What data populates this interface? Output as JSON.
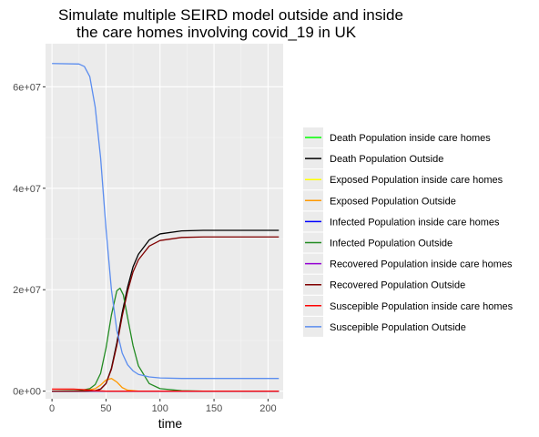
{
  "chart_data": {
    "type": "line",
    "title_lines": [
      "Simulate multiple SEIRD model outside and inside",
      "the care homes involving covid_19 in UK"
    ],
    "xlabel": "time",
    "ylabel": "",
    "xlim": [
      -6,
      214
    ],
    "ylim": [
      -1500000,
      68500000
    ],
    "x_ticks": [
      0,
      50,
      100,
      150,
      200
    ],
    "y_ticks": [
      0,
      20000000,
      40000000,
      60000000
    ],
    "y_tick_labels": [
      "0e+00",
      "2e+07",
      "4e+07",
      "6e+07"
    ],
    "grid": true,
    "legend_position": "right",
    "series": [
      {
        "name": "Death Population inside care homes",
        "color": "#00ff00",
        "x": [
          0,
          210
        ],
        "values": [
          0,
          0
        ]
      },
      {
        "name": "Death Population Outside",
        "color": "#000000",
        "x": [
          0,
          30,
          40,
          45,
          50,
          55,
          60,
          65,
          70,
          75,
          80,
          90,
          100,
          120,
          140,
          160,
          210
        ],
        "values": [
          0,
          0,
          100000,
          400000,
          1500000,
          4500000,
          9500000,
          15500000,
          20500000,
          24500000,
          27000000,
          29800000,
          31000000,
          31600000,
          31700000,
          31700000,
          31700000
        ]
      },
      {
        "name": "Exposed Population inside care homes",
        "color": "#ffff00",
        "x": [
          0,
          210
        ],
        "values": [
          0,
          0
        ]
      },
      {
        "name": "Exposed Population Outside",
        "color": "#ff9900",
        "x": [
          0,
          30,
          40,
          45,
          50,
          55,
          60,
          65,
          70,
          80,
          210
        ],
        "values": [
          0,
          100000,
          500000,
          1200000,
          2200000,
          2500000,
          1800000,
          700000,
          200000,
          0,
          0
        ]
      },
      {
        "name": "Infected Population inside care homes",
        "color": "#0000ff",
        "x": [
          0,
          210
        ],
        "values": [
          0,
          0
        ]
      },
      {
        "name": "Infected Population Outside",
        "color": "#228b22",
        "x": [
          0,
          25,
          35,
          40,
          45,
          50,
          55,
          60,
          63,
          66,
          70,
          75,
          80,
          90,
          100,
          120,
          140,
          210
        ],
        "values": [
          0,
          100000,
          500000,
          1300000,
          3500000,
          8500000,
          15000000,
          19800000,
          20300000,
          19000000,
          14500000,
          9000000,
          5000000,
          1500000,
          500000,
          80000,
          0,
          0
        ]
      },
      {
        "name": "Recovered Population inside care homes",
        "color": "#9400d3",
        "x": [
          0,
          210
        ],
        "values": [
          0,
          0
        ]
      },
      {
        "name": "Recovered Population Outside",
        "color": "#800000",
        "x": [
          0,
          30,
          40,
          45,
          50,
          55,
          60,
          65,
          70,
          75,
          80,
          90,
          100,
          120,
          140,
          160,
          210
        ],
        "values": [
          0,
          0,
          100000,
          400000,
          1500000,
          4300000,
          9000000,
          14800000,
          19700000,
          23500000,
          25900000,
          28600000,
          29700000,
          30300000,
          30400000,
          30400000,
          30400000
        ]
      },
      {
        "name": "Suscepible Population inside care homes",
        "color": "#ff0000",
        "x": [
          0,
          20,
          30,
          40,
          50,
          60,
          80,
          210
        ],
        "values": [
          400000,
          400000,
          300000,
          100000,
          0,
          0,
          0,
          0
        ]
      },
      {
        "name": "Suscepible Population Outside",
        "color": "#5b8def",
        "x": [
          0,
          25,
          30,
          35,
          40,
          45,
          50,
          55,
          60,
          65,
          70,
          75,
          80,
          90,
          100,
          120,
          150,
          210
        ],
        "values": [
          64600000,
          64500000,
          64000000,
          62000000,
          56000000,
          46000000,
          32000000,
          20000000,
          12000000,
          7500000,
          5200000,
          4000000,
          3300000,
          2800000,
          2600000,
          2500000,
          2500000,
          2500000
        ]
      }
    ]
  }
}
